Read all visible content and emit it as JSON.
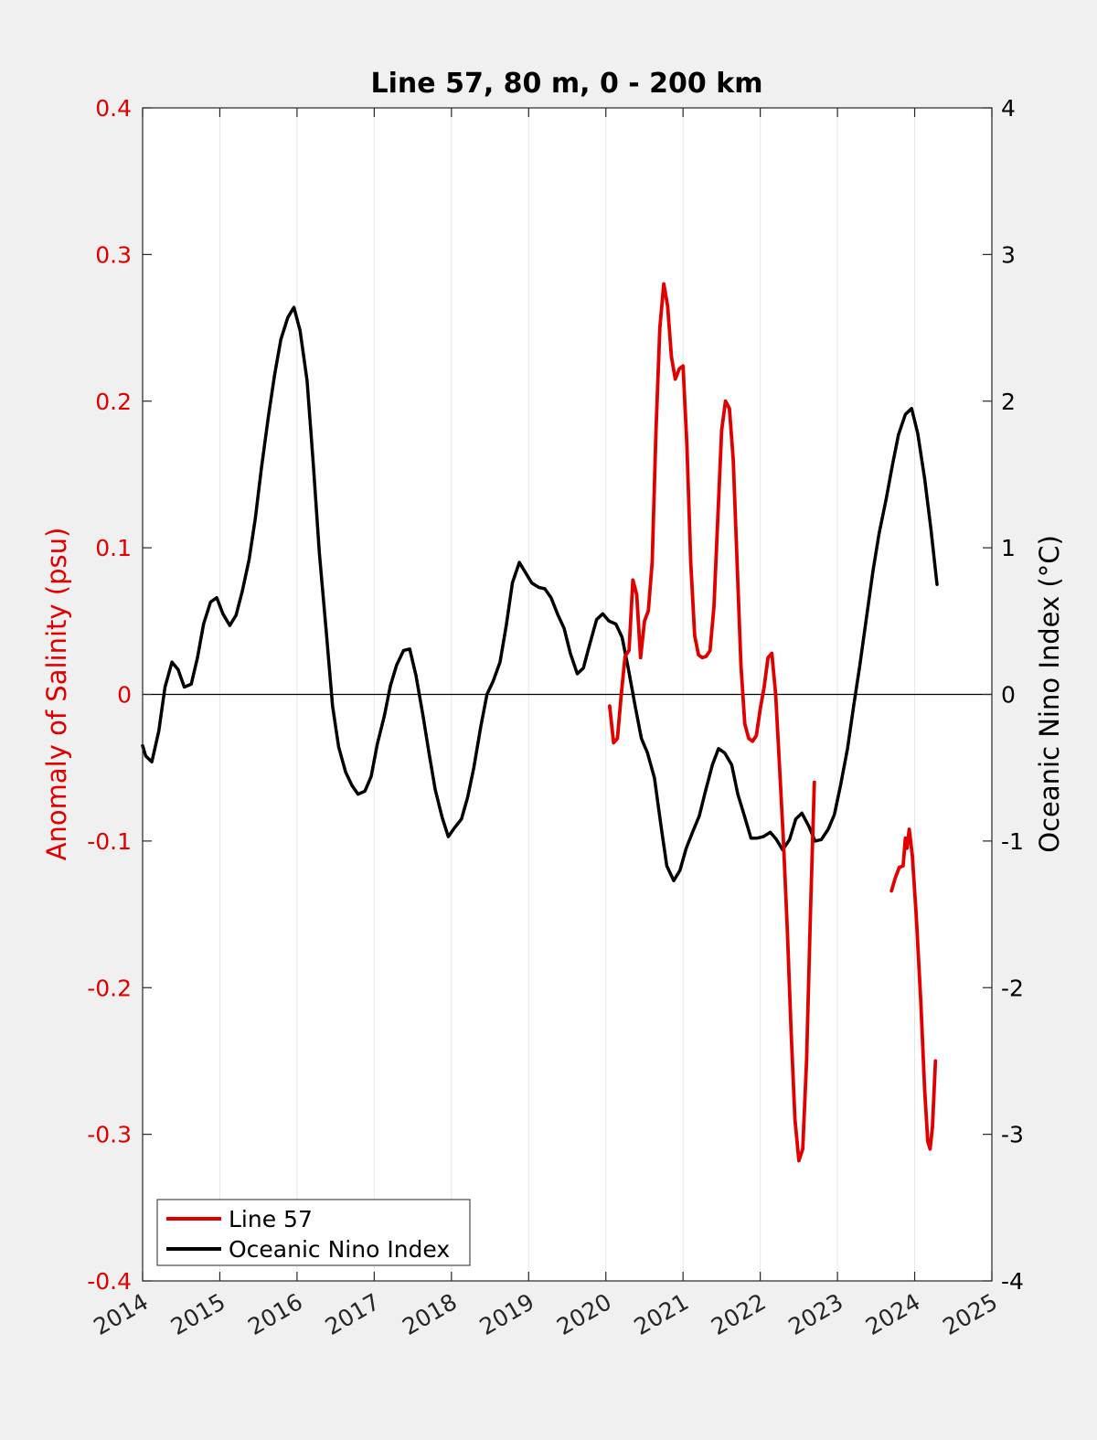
{
  "chart_data": {
    "type": "line",
    "title": "Line 57, 80 m, 0 - 200 km",
    "xlabel": "",
    "ylabel": "Anomaly of Salinity (psu)",
    "ylabel_right": "Oceanic Nino Index (°C)",
    "xlim": [
      2014,
      2025
    ],
    "ylim": [
      -0.4,
      0.4
    ],
    "ylim_right": [
      -4,
      4
    ],
    "x_ticks": [
      "2014",
      "2015",
      "2016",
      "2017",
      "2018",
      "2019",
      "2020",
      "2021",
      "2022",
      "2023",
      "2024",
      "2025"
    ],
    "y_ticks_left": [
      "-0.4",
      "-0.3",
      "-0.2",
      "-0.1",
      "0",
      "0.1",
      "0.2",
      "0.3",
      "0.4"
    ],
    "y_ticks_right": [
      "-4",
      "-3",
      "-2",
      "-1",
      "0",
      "1",
      "2",
      "3",
      "4"
    ],
    "grid": "vertical",
    "legend_position": "bottom-left",
    "colors": {
      "salinity": "#e00000",
      "oni": "#000000",
      "left_axis": "#e00000"
    },
    "series": [
      {
        "name": "Line 57",
        "axis": "left",
        "segments": [
          [
            [
              2020.05,
              -0.008
            ],
            [
              2020.1,
              -0.033
            ],
            [
              2020.15,
              -0.03
            ],
            [
              2020.2,
              0.0
            ],
            [
              2020.25,
              0.026
            ],
            [
              2020.3,
              0.03
            ],
            [
              2020.35,
              0.078
            ],
            [
              2020.4,
              0.068
            ],
            [
              2020.45,
              0.025
            ],
            [
              2020.5,
              0.05
            ],
            [
              2020.55,
              0.057
            ],
            [
              2020.6,
              0.09
            ],
            [
              2020.65,
              0.18
            ],
            [
              2020.7,
              0.25
            ],
            [
              2020.75,
              0.28
            ],
            [
              2020.8,
              0.265
            ],
            [
              2020.85,
              0.23
            ],
            [
              2020.9,
              0.215
            ],
            [
              2020.95,
              0.222
            ],
            [
              2021.0,
              0.224
            ],
            [
              2021.05,
              0.17
            ],
            [
              2021.1,
              0.09
            ],
            [
              2021.15,
              0.04
            ],
            [
              2021.2,
              0.027
            ],
            [
              2021.25,
              0.025
            ],
            [
              2021.3,
              0.026
            ],
            [
              2021.35,
              0.03
            ],
            [
              2021.4,
              0.06
            ],
            [
              2021.45,
              0.12
            ],
            [
              2021.5,
              0.18
            ],
            [
              2021.55,
              0.2
            ],
            [
              2021.6,
              0.195
            ],
            [
              2021.65,
              0.16
            ],
            [
              2021.7,
              0.09
            ],
            [
              2021.75,
              0.02
            ],
            [
              2021.8,
              -0.02
            ],
            [
              2021.85,
              -0.03
            ],
            [
              2021.9,
              -0.032
            ],
            [
              2021.95,
              -0.028
            ],
            [
              2022.0,
              -0.01
            ],
            [
              2022.05,
              0.005
            ],
            [
              2022.1,
              0.025
            ],
            [
              2022.15,
              0.028
            ],
            [
              2022.2,
              0.0
            ],
            [
              2022.25,
              -0.05
            ],
            [
              2022.3,
              -0.1
            ],
            [
              2022.35,
              -0.16
            ],
            [
              2022.4,
              -0.23
            ],
            [
              2022.45,
              -0.29
            ],
            [
              2022.5,
              -0.318
            ],
            [
              2022.55,
              -0.31
            ],
            [
              2022.6,
              -0.25
            ],
            [
              2022.65,
              -0.15
            ],
            [
              2022.7,
              -0.06
            ]
          ],
          [
            [
              2023.7,
              -0.134
            ],
            [
              2023.75,
              -0.125
            ],
            [
              2023.8,
              -0.118
            ],
            [
              2023.85,
              -0.117
            ],
            [
              2023.88,
              -0.098
            ],
            [
              2023.9,
              -0.105
            ],
            [
              2023.93,
              -0.092
            ],
            [
              2023.97,
              -0.11
            ],
            [
              2024.02,
              -0.15
            ],
            [
              2024.08,
              -0.21
            ],
            [
              2024.13,
              -0.27
            ],
            [
              2024.17,
              -0.305
            ],
            [
              2024.2,
              -0.31
            ],
            [
              2024.23,
              -0.295
            ],
            [
              2024.27,
              -0.25
            ]
          ]
        ]
      },
      {
        "name": "Oceanic Nino Index",
        "axis": "right",
        "points": [
          [
            2014.0,
            -0.35
          ],
          [
            2014.04,
            -0.42
          ],
          [
            2014.12,
            -0.46
          ],
          [
            2014.21,
            -0.25
          ],
          [
            2014.29,
            0.05
          ],
          [
            2014.38,
            0.22
          ],
          [
            2014.46,
            0.17
          ],
          [
            2014.54,
            0.05
          ],
          [
            2014.63,
            0.07
          ],
          [
            2014.71,
            0.25
          ],
          [
            2014.79,
            0.48
          ],
          [
            2014.88,
            0.63
          ],
          [
            2014.96,
            0.66
          ],
          [
            2015.04,
            0.55
          ],
          [
            2015.13,
            0.47
          ],
          [
            2015.21,
            0.54
          ],
          [
            2015.29,
            0.7
          ],
          [
            2015.38,
            0.92
          ],
          [
            2015.46,
            1.2
          ],
          [
            2015.54,
            1.55
          ],
          [
            2015.63,
            1.9
          ],
          [
            2015.71,
            2.18
          ],
          [
            2015.79,
            2.42
          ],
          [
            2015.88,
            2.57
          ],
          [
            2015.96,
            2.64
          ],
          [
            2016.04,
            2.48
          ],
          [
            2016.13,
            2.14
          ],
          [
            2016.21,
            1.58
          ],
          [
            2016.29,
            0.96
          ],
          [
            2016.38,
            0.42
          ],
          [
            2016.46,
            -0.08
          ],
          [
            2016.54,
            -0.36
          ],
          [
            2016.63,
            -0.53
          ],
          [
            2016.71,
            -0.62
          ],
          [
            2016.79,
            -0.68
          ],
          [
            2016.88,
            -0.66
          ],
          [
            2016.96,
            -0.56
          ],
          [
            2017.04,
            -0.34
          ],
          [
            2017.13,
            -0.15
          ],
          [
            2017.21,
            0.06
          ],
          [
            2017.29,
            0.2
          ],
          [
            2017.38,
            0.3
          ],
          [
            2017.46,
            0.31
          ],
          [
            2017.54,
            0.13
          ],
          [
            2017.63,
            -0.14
          ],
          [
            2017.71,
            -0.4
          ],
          [
            2017.79,
            -0.65
          ],
          [
            2017.88,
            -0.84
          ],
          [
            2017.96,
            -0.97
          ],
          [
            2018.04,
            -0.91
          ],
          [
            2018.13,
            -0.85
          ],
          [
            2018.21,
            -0.7
          ],
          [
            2018.29,
            -0.5
          ],
          [
            2018.38,
            -0.22
          ],
          [
            2018.46,
            0.0
          ],
          [
            2018.54,
            0.09
          ],
          [
            2018.63,
            0.22
          ],
          [
            2018.71,
            0.47
          ],
          [
            2018.79,
            0.76
          ],
          [
            2018.88,
            0.9
          ],
          [
            2018.96,
            0.83
          ],
          [
            2019.04,
            0.76
          ],
          [
            2019.13,
            0.73
          ],
          [
            2019.21,
            0.72
          ],
          [
            2019.29,
            0.66
          ],
          [
            2019.38,
            0.54
          ],
          [
            2019.46,
            0.45
          ],
          [
            2019.54,
            0.28
          ],
          [
            2019.63,
            0.14
          ],
          [
            2019.71,
            0.18
          ],
          [
            2019.79,
            0.34
          ],
          [
            2019.88,
            0.51
          ],
          [
            2019.96,
            0.55
          ],
          [
            2020.04,
            0.5
          ],
          [
            2020.13,
            0.48
          ],
          [
            2020.21,
            0.39
          ],
          [
            2020.29,
            0.18
          ],
          [
            2020.38,
            -0.08
          ],
          [
            2020.46,
            -0.3
          ],
          [
            2020.54,
            -0.4
          ],
          [
            2020.63,
            -0.57
          ],
          [
            2020.71,
            -0.88
          ],
          [
            2020.79,
            -1.17
          ],
          [
            2020.88,
            -1.27
          ],
          [
            2020.96,
            -1.2
          ],
          [
            2021.04,
            -1.05
          ],
          [
            2021.13,
            -0.93
          ],
          [
            2021.21,
            -0.83
          ],
          [
            2021.29,
            -0.66
          ],
          [
            2021.38,
            -0.48
          ],
          [
            2021.46,
            -0.37
          ],
          [
            2021.54,
            -0.4
          ],
          [
            2021.63,
            -0.48
          ],
          [
            2021.71,
            -0.68
          ],
          [
            2021.79,
            -0.82
          ],
          [
            2021.88,
            -0.98
          ],
          [
            2021.96,
            -0.98
          ],
          [
            2022.04,
            -0.97
          ],
          [
            2022.13,
            -0.94
          ],
          [
            2022.21,
            -0.99
          ],
          [
            2022.29,
            -1.06
          ],
          [
            2022.38,
            -0.99
          ],
          [
            2022.46,
            -0.85
          ],
          [
            2022.54,
            -0.81
          ],
          [
            2022.63,
            -0.9
          ],
          [
            2022.71,
            -1.0
          ],
          [
            2022.79,
            -0.99
          ],
          [
            2022.88,
            -0.92
          ],
          [
            2022.96,
            -0.82
          ],
          [
            2023.04,
            -0.62
          ],
          [
            2023.13,
            -0.37
          ],
          [
            2023.21,
            -0.08
          ],
          [
            2023.29,
            0.2
          ],
          [
            2023.38,
            0.54
          ],
          [
            2023.46,
            0.84
          ],
          [
            2023.54,
            1.1
          ],
          [
            2023.63,
            1.33
          ],
          [
            2023.71,
            1.56
          ],
          [
            2023.79,
            1.77
          ],
          [
            2023.88,
            1.91
          ],
          [
            2023.96,
            1.95
          ],
          [
            2024.04,
            1.78
          ],
          [
            2024.13,
            1.47
          ],
          [
            2024.21,
            1.13
          ],
          [
            2024.29,
            0.75
          ]
        ]
      }
    ]
  }
}
